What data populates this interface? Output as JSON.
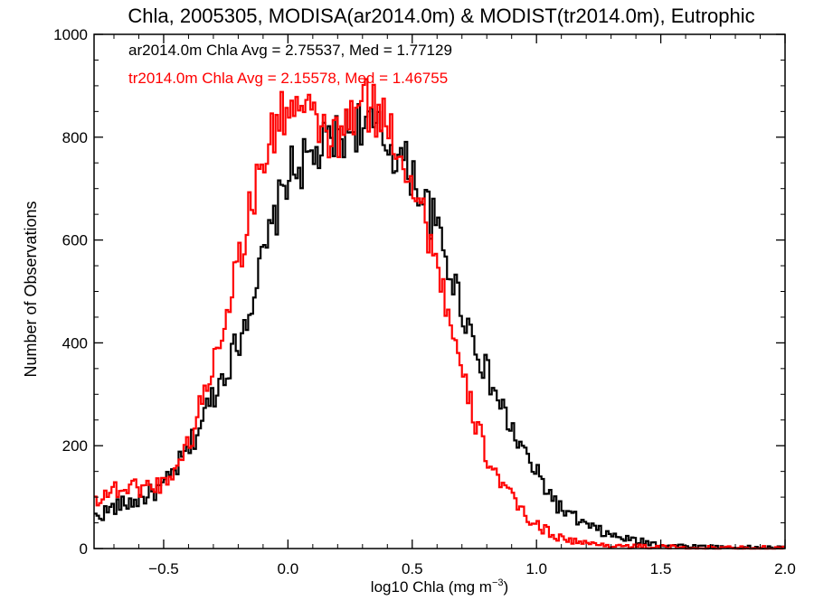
{
  "chart_data": {
    "type": "histogram",
    "title": "Chla, 2005305, MODISA(ar2014.0m) & MODIST(tr2014.0m), Eutrophic",
    "xlabel_main": "log10 Chla (mg m",
    "xlabel_sup": "−3",
    "xlabel_close": ")",
    "ylabel": "Number of Observations",
    "xlim": [
      -0.78,
      2.0
    ],
    "ylim": [
      0,
      1000
    ],
    "x_ticks": [
      -0.5,
      0.0,
      0.5,
      1.0,
      1.5,
      2.0
    ],
    "x_tick_labels": [
      "−0.5",
      "0.0",
      "0.5",
      "1.0",
      "1.5",
      "2.0"
    ],
    "y_ticks": [
      0,
      200,
      400,
      600,
      800,
      1000
    ],
    "y_tick_labels": [
      "0",
      "200",
      "400",
      "600",
      "800",
      "1000"
    ],
    "grid": false,
    "legend_placement": "top-left",
    "series": [
      {
        "name": "ar2014.0m",
        "color": "#000000",
        "label": "ar2014.0m Chla Avg = 2.75537, Med = 1.77129",
        "x": [
          -0.78,
          -0.7,
          -0.6,
          -0.5,
          -0.4,
          -0.3,
          -0.2,
          -0.1,
          0.0,
          0.1,
          0.2,
          0.3,
          0.4,
          0.5,
          0.6,
          0.7,
          0.8,
          0.9,
          1.0,
          1.1,
          1.2,
          1.3,
          1.4,
          1.5,
          1.6,
          1.7,
          1.8,
          1.9,
          2.0
        ],
        "y": [
          60,
          80,
          95,
          120,
          190,
          300,
          400,
          560,
          730,
          760,
          800,
          830,
          790,
          730,
          620,
          470,
          340,
          230,
          145,
          75,
          45,
          25,
          15,
          8,
          5,
          3,
          2,
          1,
          1
        ]
      },
      {
        "name": "tr2014.0m",
        "color": "#ff0000",
        "label": "tr2014.0m Chla Avg = 2.15578, Med = 1.46755",
        "x": [
          -0.78,
          -0.7,
          -0.6,
          -0.5,
          -0.4,
          -0.3,
          -0.2,
          -0.1,
          0.0,
          0.1,
          0.2,
          0.3,
          0.4,
          0.5,
          0.6,
          0.7,
          0.8,
          0.9,
          1.0,
          1.1,
          1.2,
          1.3,
          1.4,
          1.5,
          1.6,
          1.7,
          1.8,
          1.9,
          2.0
        ],
        "y": [
          95,
          115,
          120,
          125,
          200,
          360,
          560,
          760,
          870,
          830,
          790,
          870,
          830,
          720,
          560,
          330,
          180,
          95,
          45,
          20,
          10,
          6,
          4,
          3,
          2,
          1,
          1,
          1,
          0
        ]
      }
    ]
  }
}
